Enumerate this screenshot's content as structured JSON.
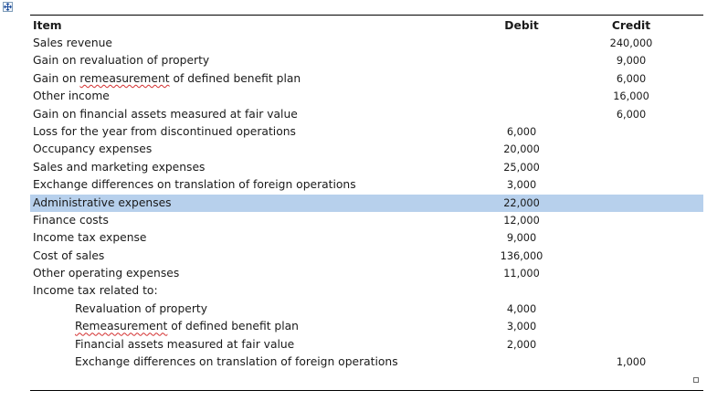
{
  "table": {
    "headers": {
      "item": "Item",
      "debit": "Debit",
      "credit": "Credit"
    },
    "rows": [
      {
        "item": "Sales revenue",
        "debit": "",
        "credit": "240,000"
      },
      {
        "item": "Gain on revaluation of property",
        "debit": "",
        "credit": "9,000"
      },
      {
        "item_pre": "Gain on ",
        "item_flag": "remeasurement",
        "item_post": " of defined benefit plan",
        "debit": "",
        "credit": "6,000"
      },
      {
        "item": "Other income",
        "debit": "",
        "credit": "16,000"
      },
      {
        "item": "Gain on financial assets measured at fair value",
        "debit": "",
        "credit": "6,000"
      },
      {
        "item": "Loss for the year from discontinued operations",
        "debit": "6,000",
        "credit": ""
      },
      {
        "item": "Occupancy expenses",
        "debit": "20,000",
        "credit": ""
      },
      {
        "item": "Sales and marketing expenses",
        "debit": "25,000",
        "credit": ""
      },
      {
        "item": "Exchange differences on translation of foreign operations",
        "debit": "3,000",
        "credit": ""
      },
      {
        "item": "Administrative expenses",
        "debit": "22,000",
        "credit": "",
        "selected": true
      },
      {
        "item": "Finance costs",
        "debit": "12,000",
        "credit": ""
      },
      {
        "item": "Income tax expense",
        "debit": "9,000",
        "credit": ""
      },
      {
        "item": "Cost of sales",
        "debit": "136,000",
        "credit": ""
      },
      {
        "item": "Other operating expenses",
        "debit": "11,000",
        "credit": ""
      },
      {
        "item": "Income tax related to:",
        "debit": "",
        "credit": ""
      },
      {
        "item": "Revaluation of property",
        "debit": "4,000",
        "credit": "",
        "indent": true
      },
      {
        "item_flag": "Remeasurement",
        "item_post": " of defined benefit plan",
        "debit": "3,000",
        "credit": "",
        "indent": true
      },
      {
        "item": "Financial assets measured at fair value",
        "debit": "2,000",
        "credit": "",
        "indent": true
      },
      {
        "item": "Exchange differences on translation of foreign operations",
        "debit": "",
        "credit": "1,000",
        "indent": true
      }
    ]
  },
  "colors": {
    "selection": "#b7d0ec",
    "spellcheck": "#d32f2f",
    "rule": "#000000"
  },
  "icons": {
    "move_handle": "table-move-icon",
    "resize_handle": "table-resize-icon"
  }
}
